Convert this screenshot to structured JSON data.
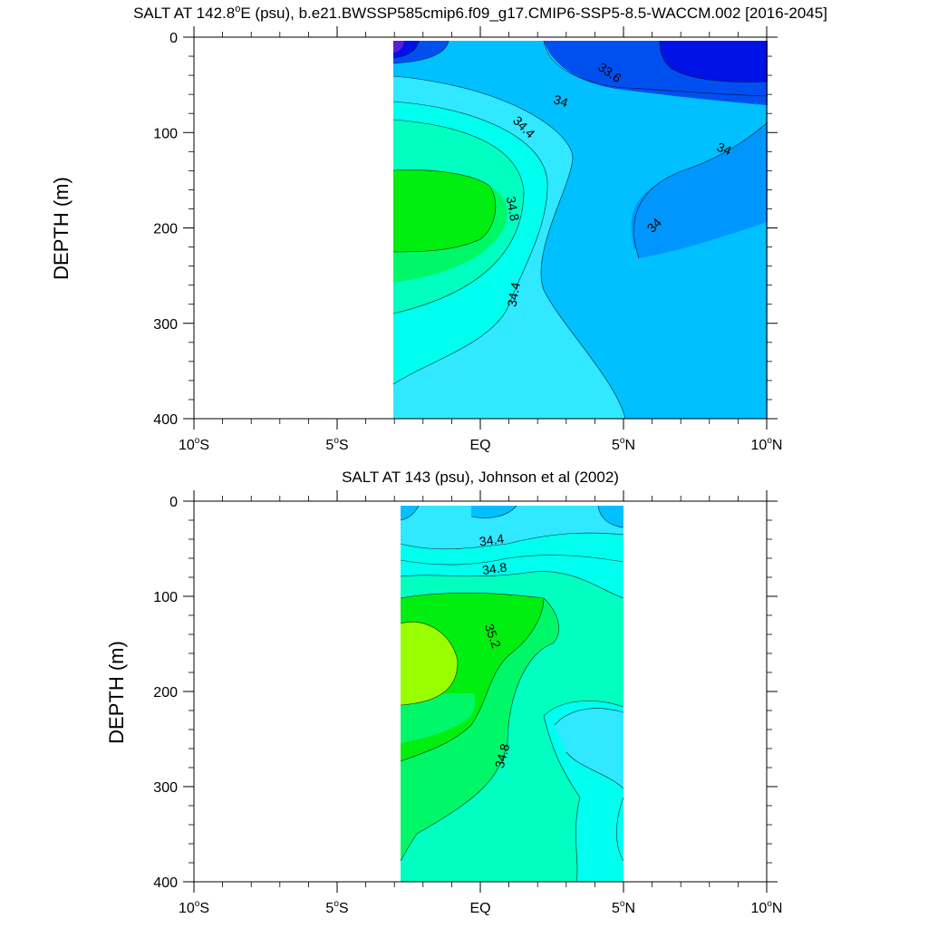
{
  "chart_data": [
    {
      "type": "heatmap",
      "subtype": "filled-contour",
      "title": "SALT AT 142.8°E (psu), b.e21.BWSSP585cmip6.f09_g17.CMIP6-SSP5-8.5-WACCM.002 [2016-2045]",
      "title_parts": {
        "pre": "SALT AT 142.8",
        "sup": "o",
        "post": "E (psu), b.e21.BWSSP585cmip6.f09_g17.CMIP6-SSP5-8.5-WACCM.002 [2016-2045]"
      },
      "xlabel": "",
      "ylabel": "DEPTH (m)",
      "xlim": [
        -10,
        10
      ],
      "ylim": [
        400,
        0
      ],
      "data_xrange": [
        -3,
        10
      ],
      "x_ticks": [
        {
          "value": -10,
          "num": "10",
          "deg": "o",
          "hem": "S"
        },
        {
          "value": -5,
          "num": "5",
          "deg": "o",
          "hem": "S"
        },
        {
          "value": 0,
          "num": "EQ",
          "deg": "",
          "hem": ""
        },
        {
          "value": 5,
          "num": "5",
          "deg": "o",
          "hem": "N"
        },
        {
          "value": 10,
          "num": "10",
          "deg": "o",
          "hem": "N"
        }
      ],
      "y_ticks": [
        0,
        100,
        200,
        300,
        400
      ],
      "contour_labels": [
        {
          "text": "33.6",
          "lon": 4.5,
          "depth": 38,
          "angle": 35
        },
        {
          "text": "34",
          "lon": 2.8,
          "depth": 68,
          "angle": 18
        },
        {
          "text": "34.4",
          "lon": 1.5,
          "depth": 95,
          "angle": 45
        },
        {
          "text": "34",
          "lon": 8.5,
          "depth": 118,
          "angle": 22
        },
        {
          "text": "34.8",
          "lon": 1.1,
          "depth": 180,
          "angle": 80
        },
        {
          "text": "34",
          "lon": 6.1,
          "depth": 198,
          "angle": -45
        },
        {
          "text": "34.4",
          "lon": 1.2,
          "depth": 270,
          "angle": -80
        }
      ]
    },
    {
      "type": "heatmap",
      "subtype": "filled-contour",
      "title": "SALT AT 143 (psu), Johnson et al (2002)",
      "xlabel": "",
      "ylabel": "DEPTH (m)",
      "xlim": [
        -10,
        10
      ],
      "ylim": [
        400,
        0
      ],
      "data_xrange": [
        -2.8,
        5
      ],
      "x_ticks": [
        {
          "value": -10,
          "num": "10",
          "deg": "o",
          "hem": "S"
        },
        {
          "value": -5,
          "num": "5",
          "deg": "o",
          "hem": "S"
        },
        {
          "value": 0,
          "num": "EQ",
          "deg": "",
          "hem": ""
        },
        {
          "value": 5,
          "num": "5",
          "deg": "o",
          "hem": "N"
        },
        {
          "value": 10,
          "num": "10",
          "deg": "o",
          "hem": "N"
        }
      ],
      "y_ticks": [
        0,
        100,
        200,
        300,
        400
      ],
      "contour_labels": [
        {
          "text": "34.4",
          "lon": 0.4,
          "depth": 42,
          "angle": -8
        },
        {
          "text": "34.8",
          "lon": 0.5,
          "depth": 72,
          "angle": -8
        },
        {
          "text": "35.2",
          "lon": 0.4,
          "depth": 142,
          "angle": 70
        },
        {
          "text": "34.8",
          "lon": 0.8,
          "depth": 268,
          "angle": -75
        }
      ]
    }
  ],
  "colors": {
    "s33_2": "#5a1fd6",
    "s33_6": "#0012e6",
    "s34_0": "#0050f0",
    "s34_2": "#0096ff",
    "s34_4": "#00c0ff",
    "s34_6": "#30e8ff",
    "s34_8": "#00ffee",
    "s35_0": "#00ffc0",
    "s35_2": "#00f868",
    "s35_4": "#00ee10",
    "s35_6": "#99ff00"
  }
}
